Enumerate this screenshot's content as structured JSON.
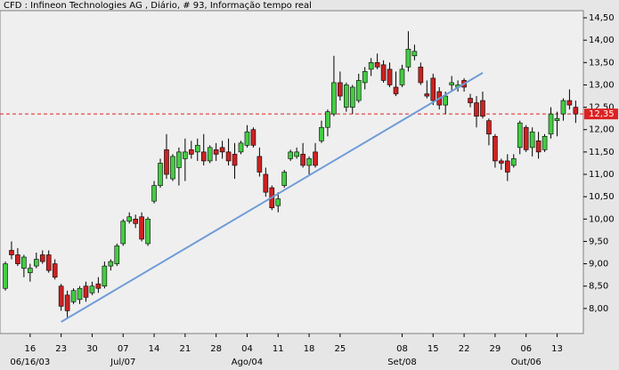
{
  "chart_data": {
    "type": "candlestick",
    "title": "CFD : Infineon Technologies AG , Diário, # 93, Informação tempo real",
    "xlim": [
      -0.86,
      93.24
    ],
    "ylim": [
      7.44,
      14.66
    ],
    "xticks": [
      {
        "value": 4,
        "label": "16"
      },
      {
        "value": 9,
        "label": "23"
      },
      {
        "value": 14,
        "label": "30"
      },
      {
        "value": 19,
        "label": "07"
      },
      {
        "value": 24,
        "label": "14"
      },
      {
        "value": 29,
        "label": "21"
      },
      {
        "value": 34,
        "label": "28"
      },
      {
        "value": 39,
        "label": "04"
      },
      {
        "value": 44,
        "label": "11"
      },
      {
        "value": 49,
        "label": "18"
      },
      {
        "value": 54,
        "label": "25"
      },
      {
        "value": 64,
        "label": "08"
      },
      {
        "value": 69,
        "label": "15"
      },
      {
        "value": 74,
        "label": "22"
      },
      {
        "value": 79,
        "label": "29"
      },
      {
        "value": 84,
        "label": "06"
      },
      {
        "value": 89,
        "label": "13"
      }
    ],
    "month_labels": [
      {
        "value": 4,
        "label": "06/16/03"
      },
      {
        "value": 19,
        "label": "Jul/07"
      },
      {
        "value": 39,
        "label": "Ago/04"
      },
      {
        "value": 64,
        "label": "Set/08"
      },
      {
        "value": 84,
        "label": "Out/06"
      }
    ],
    "yticks": [
      {
        "value": 8,
        "label": "8,00"
      },
      {
        "value": 8.5,
        "label": "8,50"
      },
      {
        "value": 9,
        "label": "9,00"
      },
      {
        "value": 9.5,
        "label": "9,50"
      },
      {
        "value": 10,
        "label": "10,00"
      },
      {
        "value": 10.5,
        "label": "10,50"
      },
      {
        "value": 11,
        "label": "11,00"
      },
      {
        "value": 11.5,
        "label": "11,50"
      },
      {
        "value": 12,
        "label": "12,00"
      },
      {
        "value": 12.5,
        "label": "12,50"
      },
      {
        "value": 13,
        "label": "13,00"
      },
      {
        "value": 13.5,
        "label": "13,50"
      },
      {
        "value": 14,
        "label": "14,00"
      },
      {
        "value": 14.5,
        "label": "14,50"
      }
    ],
    "up_color": "#44cc44",
    "down_color": "#cc2222",
    "trend_color": "#6f9bd8",
    "last_price": {
      "value": 12.35,
      "label": "12,35"
    },
    "trendline": {
      "x": [
        9,
        77
      ],
      "y": [
        7.7,
        13.27
      ]
    },
    "candles": [
      [
        8.45,
        9.05,
        8.4,
        9.0
      ],
      [
        9.3,
        9.5,
        9.1,
        9.2
      ],
      [
        9.2,
        9.35,
        8.95,
        9.0
      ],
      [
        8.9,
        9.2,
        8.7,
        9.15
      ],
      [
        8.8,
        9.0,
        8.6,
        8.9
      ],
      [
        8.95,
        9.25,
        8.9,
        9.1
      ],
      [
        9.2,
        9.3,
        9.0,
        9.05
      ],
      [
        9.2,
        9.3,
        8.8,
        8.85
      ],
      [
        9.0,
        9.1,
        8.65,
        8.7
      ],
      [
        8.5,
        8.55,
        7.95,
        8.05
      ],
      [
        8.3,
        8.4,
        7.8,
        7.95
      ],
      [
        8.15,
        8.45,
        8.1,
        8.4
      ],
      [
        8.2,
        8.5,
        8.1,
        8.45
      ],
      [
        8.5,
        8.6,
        8.15,
        8.25
      ],
      [
        8.35,
        8.6,
        8.3,
        8.5
      ],
      [
        8.55,
        8.7,
        8.35,
        8.45
      ],
      [
        8.5,
        9.05,
        8.45,
        8.95
      ],
      [
        8.95,
        9.1,
        8.85,
        9.05
      ],
      [
        9.0,
        9.45,
        8.95,
        9.4
      ],
      [
        9.45,
        10.0,
        9.4,
        9.95
      ],
      [
        9.95,
        10.15,
        9.9,
        10.05
      ],
      [
        10.0,
        10.1,
        9.8,
        9.9
      ],
      [
        10.05,
        10.15,
        9.5,
        9.55
      ],
      [
        9.45,
        10.05,
        9.4,
        10.0
      ],
      [
        10.4,
        10.85,
        10.35,
        10.75
      ],
      [
        10.75,
        11.35,
        10.7,
        11.25
      ],
      [
        11.55,
        11.9,
        10.9,
        11.0
      ],
      [
        10.9,
        11.45,
        10.85,
        11.4
      ],
      [
        11.15,
        11.6,
        10.75,
        11.5
      ],
      [
        11.35,
        11.8,
        10.85,
        11.5
      ],
      [
        11.55,
        11.75,
        11.35,
        11.45
      ],
      [
        11.5,
        11.8,
        11.3,
        11.65
      ],
      [
        11.5,
        11.9,
        11.2,
        11.3
      ],
      [
        11.3,
        11.65,
        11.25,
        11.6
      ],
      [
        11.55,
        11.7,
        11.3,
        11.45
      ],
      [
        11.6,
        11.75,
        11.35,
        11.5
      ],
      [
        11.5,
        11.8,
        11.2,
        11.3
      ],
      [
        11.45,
        11.7,
        10.9,
        11.2
      ],
      [
        11.5,
        11.75,
        11.45,
        11.7
      ],
      [
        11.65,
        12.1,
        11.6,
        11.95
      ],
      [
        12.0,
        12.05,
        11.6,
        11.65
      ],
      [
        11.4,
        11.6,
        10.95,
        11.05
      ],
      [
        11.0,
        11.15,
        10.5,
        10.6
      ],
      [
        10.7,
        10.75,
        10.2,
        10.25
      ],
      [
        10.3,
        10.6,
        10.15,
        10.45
      ],
      [
        10.75,
        11.1,
        10.7,
        11.05
      ],
      [
        11.35,
        11.55,
        11.3,
        11.5
      ],
      [
        11.4,
        11.6,
        11.35,
        11.5
      ],
      [
        11.45,
        11.7,
        11.15,
        11.2
      ],
      [
        11.2,
        11.4,
        11.0,
        11.35
      ],
      [
        11.5,
        11.7,
        11.15,
        11.2
      ],
      [
        11.75,
        12.2,
        11.7,
        12.05
      ],
      [
        12.05,
        12.45,
        11.85,
        12.4
      ],
      [
        12.35,
        13.65,
        12.3,
        13.05
      ],
      [
        13.05,
        13.3,
        12.65,
        12.75
      ],
      [
        12.5,
        13.05,
        12.4,
        13.0
      ],
      [
        12.5,
        13.0,
        12.35,
        12.95
      ],
      [
        12.65,
        13.25,
        12.6,
        13.1
      ],
      [
        13.05,
        13.4,
        12.9,
        13.3
      ],
      [
        13.35,
        13.6,
        13.2,
        13.5
      ],
      [
        13.5,
        13.7,
        13.35,
        13.4
      ],
      [
        13.45,
        13.55,
        13.05,
        13.1
      ],
      [
        13.35,
        13.5,
        12.95,
        13.0
      ],
      [
        12.95,
        13.3,
        12.75,
        12.8
      ],
      [
        13.0,
        13.45,
        12.95,
        13.35
      ],
      [
        13.4,
        14.2,
        13.3,
        13.8
      ],
      [
        13.65,
        13.9,
        13.55,
        13.75
      ],
      [
        13.4,
        13.5,
        13.0,
        13.05
      ],
      [
        12.8,
        13.1,
        12.7,
        12.75
      ],
      [
        13.15,
        13.25,
        12.55,
        12.65
      ],
      [
        12.85,
        12.95,
        12.45,
        12.55
      ],
      [
        12.55,
        12.85,
        12.35,
        12.75
      ],
      [
        13.0,
        13.2,
        12.85,
        13.05
      ],
      [
        12.95,
        13.1,
        12.85,
        13.0
      ],
      [
        13.1,
        13.15,
        12.85,
        12.95
      ],
      [
        12.7,
        12.8,
        12.5,
        12.6
      ],
      [
        12.6,
        12.75,
        12.05,
        12.3
      ],
      [
        12.65,
        12.85,
        12.25,
        12.3
      ],
      [
        12.2,
        12.25,
        11.65,
        11.9
      ],
      [
        11.85,
        11.9,
        11.15,
        11.3
      ],
      [
        11.3,
        11.35,
        11.1,
        11.25
      ],
      [
        11.3,
        11.45,
        10.85,
        11.05
      ],
      [
        11.2,
        11.45,
        11.15,
        11.35
      ],
      [
        11.6,
        12.2,
        11.45,
        12.15
      ],
      [
        12.05,
        12.1,
        11.5,
        11.55
      ],
      [
        11.6,
        12.05,
        11.4,
        11.95
      ],
      [
        11.75,
        11.95,
        11.35,
        11.5
      ],
      [
        11.55,
        11.9,
        11.5,
        11.85
      ],
      [
        11.9,
        12.5,
        11.8,
        12.35
      ],
      [
        12.2,
        12.4,
        11.85,
        12.25
      ],
      [
        12.35,
        12.7,
        12.2,
        12.65
      ],
      [
        12.65,
        12.9,
        12.45,
        12.55
      ],
      [
        12.5,
        12.65,
        12.15,
        12.35
      ]
    ]
  }
}
